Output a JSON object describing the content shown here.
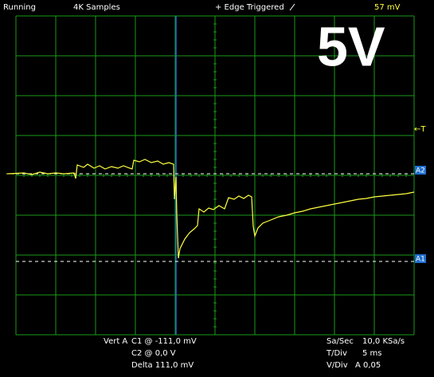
{
  "status_bar": {
    "state": "Running",
    "samples": "4K Samples",
    "trigger": "+ Edge Triggered",
    "trigger_level": "57 mV"
  },
  "overlay_label": "5V",
  "markers": {
    "trigger": "←T",
    "cursor_a2": "A2",
    "cursor_a1": "A1"
  },
  "readout": {
    "vert_label": "Vert A",
    "c1": "C1 @ -111,0 mV",
    "c2": "C2 @ 0,0  V",
    "delta": "Delta 111,0 mV",
    "sample_rate_label": "Sa/Sec",
    "sample_rate": "10,0 KSa/s",
    "time_div_label": "T/Div",
    "time_div": "5 ms",
    "volt_div_label": "V/Div",
    "volt_div": "A 0,05"
  }
}
